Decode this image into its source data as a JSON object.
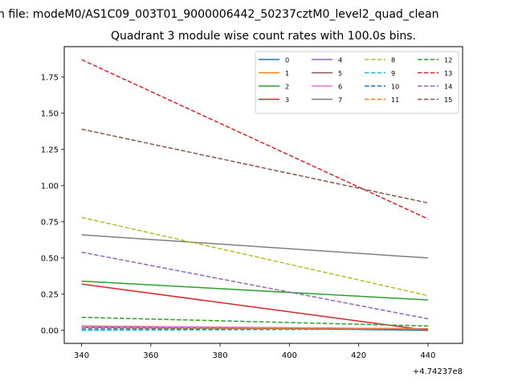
{
  "figure": {
    "suptitle": "n file: modeM0/AS1C09_003T01_9000006442_50237cztM0_level2_quad_clean",
    "title": "Quadrant 3 module wise count rates with 100.0s bins."
  },
  "chart_data": {
    "type": "line",
    "title": "Quadrant 3 module wise count rates with 100.0s bins.",
    "xlabel": "",
    "ylabel": "",
    "x": [
      340,
      440
    ],
    "x_offset_label": "+4.74237e8",
    "xlim": [
      335,
      450
    ],
    "ylim": [
      -0.09,
      1.96
    ],
    "xticks": [
      "340",
      "360",
      "380",
      "400",
      "420",
      "440"
    ],
    "yticks": [
      "0.00",
      "0.25",
      "0.50",
      "0.75",
      "1.00",
      "1.25",
      "1.50",
      "1.75"
    ],
    "legend": {
      "position": "upper right",
      "columns": 4
    },
    "series": [
      {
        "name": "0",
        "color": "#1f77b4",
        "dash": "solid",
        "values": [
          0.03,
          0.0
        ]
      },
      {
        "name": "1",
        "color": "#ff7f0e",
        "dash": "solid",
        "values": [
          0.02,
          0.01
        ]
      },
      {
        "name": "2",
        "color": "#2ca02c",
        "dash": "solid",
        "values": [
          0.34,
          0.21
        ]
      },
      {
        "name": "3",
        "color": "#d62728",
        "dash": "solid",
        "values": [
          0.32,
          0.0
        ]
      },
      {
        "name": "4",
        "color": "#9467bd",
        "dash": "solid",
        "values": [
          0.03,
          0.01
        ]
      },
      {
        "name": "5",
        "color": "#8c564b",
        "dash": "solid",
        "values": [
          0.02,
          0.01
        ]
      },
      {
        "name": "6",
        "color": "#e377c2",
        "dash": "solid",
        "values": [
          0.03,
          0.01
        ]
      },
      {
        "name": "7",
        "color": "#7f7f7f",
        "dash": "solid",
        "values": [
          0.66,
          0.5
        ]
      },
      {
        "name": "8",
        "color": "#bcbd22",
        "dash": "dashed",
        "values": [
          0.78,
          0.24
        ]
      },
      {
        "name": "9",
        "color": "#17becf",
        "dash": "dashed",
        "values": [
          0.0,
          0.01
        ]
      },
      {
        "name": "10",
        "color": "#1f77b4",
        "dash": "dashed",
        "values": [
          0.01,
          0.01
        ]
      },
      {
        "name": "11",
        "color": "#ff7f0e",
        "dash": "dashed",
        "values": [
          0.02,
          0.01
        ]
      },
      {
        "name": "12",
        "color": "#2ca02c",
        "dash": "dashed",
        "values": [
          0.09,
          0.03
        ]
      },
      {
        "name": "13",
        "color": "#d62728",
        "dash": "dashed",
        "values": [
          1.87,
          0.77
        ]
      },
      {
        "name": "14",
        "color": "#9467bd",
        "dash": "dashed",
        "values": [
          0.54,
          0.08
        ]
      },
      {
        "name": "15",
        "color": "#8c564b",
        "dash": "dashed",
        "values": [
          1.39,
          0.88
        ]
      }
    ]
  }
}
